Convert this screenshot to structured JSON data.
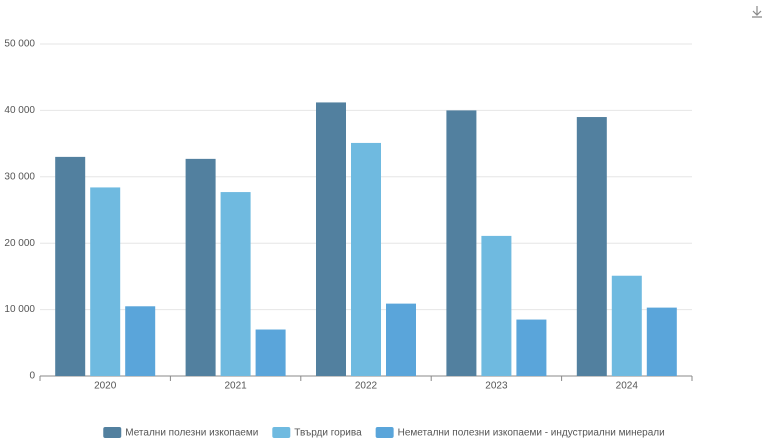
{
  "chart_data": {
    "type": "bar",
    "categories": [
      "2020",
      "2021",
      "2022",
      "2023",
      "2024"
    ],
    "series": [
      {
        "name": "Метални полезни изкопаеми",
        "color": "#52809f",
        "values": [
          33000,
          32700,
          41200,
          40000,
          39000
        ]
      },
      {
        "name": "Твърди горива",
        "color": "#6fbae0",
        "values": [
          28400,
          27700,
          35100,
          21100,
          15100
        ]
      },
      {
        "name": "Неметални полезни изкопаеми - индустриални минерали",
        "color": "#5aa5da",
        "values": [
          10500,
          7000,
          10900,
          8500,
          10300
        ]
      }
    ],
    "ylim": [
      0,
      50000
    ],
    "yticks": [
      0,
      {
        "value": 10000,
        "label": "10 000"
      },
      {
        "value": 20000,
        "label": "20 000"
      },
      {
        "value": 30000,
        "label": "30 000"
      },
      {
        "value": 40000,
        "label": "40 000"
      },
      {
        "value": 50000,
        "label": "50 000"
      }
    ],
    "grid": true,
    "legend": "bottom"
  }
}
